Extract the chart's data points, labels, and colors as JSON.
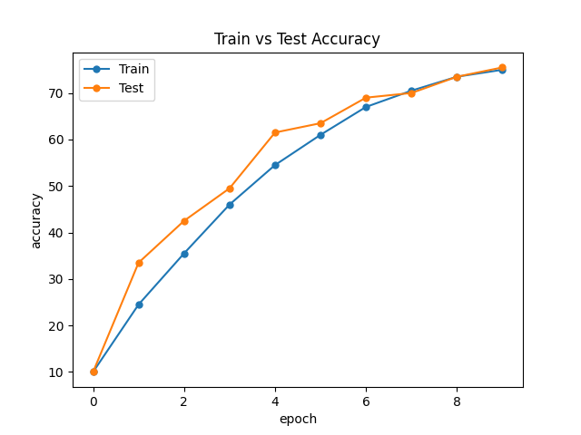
{
  "title": "Train vs Test Accuracy",
  "xlabel": "epoch",
  "ylabel": "accuracy",
  "epochs": [
    0,
    1,
    2,
    3,
    4,
    5,
    6,
    7,
    8,
    9
  ],
  "train_accuracy": [
    10,
    24.5,
    35.5,
    46,
    54.5,
    61,
    67,
    70.5,
    73.5,
    75
  ],
  "test_accuracy": [
    10,
    33.5,
    42.5,
    49.5,
    61.5,
    63.5,
    69,
    70,
    73.5,
    75.5
  ],
  "train_color": "#1f77b4",
  "test_color": "#ff7f0e",
  "train_label": "Train",
  "test_label": "Test",
  "marker": "o",
  "linewidth": 1.5,
  "markersize": 5,
  "figsize": [
    6.4,
    4.8
  ],
  "dpi": 100
}
